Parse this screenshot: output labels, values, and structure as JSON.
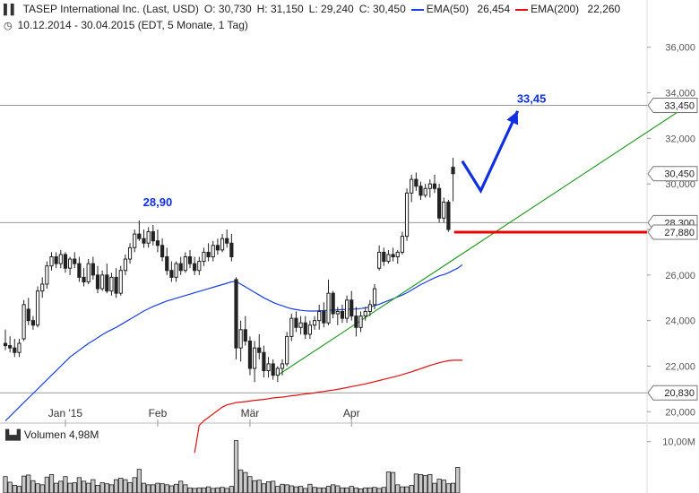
{
  "header": {
    "title": "TASEP International Inc. (Last, USD)",
    "open": "O: 30,730",
    "high": "H: 31,150",
    "low": "L: 29,240",
    "close": "C: 30,450",
    "ema50_label": "EMA(50)",
    "ema50_value": "26,454",
    "ema200_label": "EMA(200)",
    "ema200_value": "22,260",
    "range": "10.12.2014 - 30.04.2015 (EDT, 5 Monate, 1 Tag)",
    "volume_label": "Volumen",
    "volume_value": "4,98M"
  },
  "colors": {
    "candle": "#222222",
    "ema50": "#1a3fe0",
    "ema200": "#e01010",
    "trend": "#2a9a2a",
    "resistance_line": "#999999",
    "arrow": "#1030e0",
    "support_red": "#ee0000",
    "volume_bar": "#c8c8c8"
  },
  "chart_data": {
    "type": "candlestick",
    "title": "TASEP International Inc. (Last, USD)",
    "y_axis_ticks": [
      "36,000",
      "34,000",
      "32,000",
      "30,000",
      "28,000",
      "26,000",
      "24,000",
      "22,000",
      "20,000"
    ],
    "y_tick_values": [
      36,
      34,
      32,
      30,
      28,
      26,
      24,
      22,
      20
    ],
    "ylim": [
      19.5,
      36.5
    ],
    "x_axis_labels": [
      "Jan '15",
      "Feb",
      "Mär",
      "Apr"
    ],
    "x_label_index": [
      13,
      33,
      53,
      75
    ],
    "price_labels": [
      {
        "label": "33,450",
        "value": 33.45
      },
      {
        "label": "30,450",
        "value": 30.45
      },
      {
        "label": "28,300",
        "value": 28.3
      },
      {
        "label": "27,880",
        "value": 27.88
      },
      {
        "label": "20,830",
        "value": 20.83
      }
    ],
    "horizontal_lines": [
      {
        "value": 33.45,
        "color": "#999999"
      },
      {
        "value": 28.3,
        "color": "#999999"
      },
      {
        "value": 20.83,
        "color": "#999999"
      }
    ],
    "annotations": [
      {
        "text": "28,90",
        "value": 28.9,
        "index": 33
      },
      {
        "text": "33,45",
        "value": 33.45,
        "index": 114
      }
    ],
    "candles": [
      [
        23.0,
        23.6,
        22.7,
        22.9
      ],
      [
        22.9,
        23.3,
        22.6,
        22.8
      ],
      [
        22.8,
        23.2,
        22.4,
        22.6
      ],
      [
        22.6,
        23.2,
        22.4,
        23.0
      ],
      [
        23.2,
        24.9,
        23.1,
        24.7
      ],
      [
        24.5,
        25.0,
        23.8,
        24.0
      ],
      [
        24.0,
        24.2,
        23.6,
        23.8
      ],
      [
        23.8,
        25.5,
        23.7,
        25.3
      ],
      [
        25.3,
        25.9,
        25.0,
        25.6
      ],
      [
        25.6,
        26.6,
        25.4,
        26.4
      ],
      [
        26.4,
        27.0,
        26.2,
        26.8
      ],
      [
        26.8,
        27.0,
        26.3,
        26.5
      ],
      [
        26.5,
        27.1,
        26.3,
        26.9
      ],
      [
        26.9,
        27.0,
        26.1,
        26.3
      ],
      [
        26.3,
        26.8,
        26.0,
        26.7
      ],
      [
        26.7,
        27.0,
        26.3,
        26.5
      ],
      [
        26.5,
        26.8,
        25.7,
        25.9
      ],
      [
        25.9,
        26.3,
        25.5,
        25.7
      ],
      [
        25.7,
        26.7,
        25.6,
        26.5
      ],
      [
        26.5,
        26.8,
        25.8,
        26.0
      ],
      [
        26.0,
        26.4,
        25.2,
        25.4
      ],
      [
        25.4,
        26.2,
        25.3,
        26.0
      ],
      [
        26.0,
        26.5,
        25.2,
        25.3
      ],
      [
        25.3,
        26.1,
        25.1,
        25.9
      ],
      [
        25.9,
        26.3,
        25.0,
        25.2
      ],
      [
        25.2,
        26.4,
        25.1,
        26.2
      ],
      [
        26.2,
        26.9,
        26.0,
        26.7
      ],
      [
        26.7,
        27.4,
        26.5,
        27.2
      ],
      [
        27.2,
        28.0,
        27.0,
        27.8
      ],
      [
        27.8,
        28.4,
        27.5,
        27.6
      ],
      [
        27.6,
        28.0,
        27.2,
        27.4
      ],
      [
        27.4,
        28.1,
        27.2,
        27.9
      ],
      [
        27.9,
        28.2,
        27.3,
        27.5
      ],
      [
        27.5,
        28.0,
        27.0,
        27.3
      ],
      [
        27.3,
        27.6,
        26.6,
        26.8
      ],
      [
        26.8,
        27.2,
        26.0,
        26.2
      ],
      [
        26.2,
        26.6,
        25.7,
        25.9
      ],
      [
        25.9,
        26.6,
        25.7,
        26.5
      ],
      [
        26.5,
        26.8,
        26.0,
        26.2
      ],
      [
        26.2,
        27.0,
        26.1,
        26.8
      ],
      [
        26.8,
        27.1,
        26.3,
        26.5
      ],
      [
        26.5,
        26.8,
        26.0,
        26.2
      ],
      [
        26.2,
        26.8,
        26.0,
        26.6
      ],
      [
        26.6,
        27.2,
        26.4,
        27.0
      ],
      [
        27.0,
        27.4,
        26.6,
        26.8
      ],
      [
        26.8,
        27.5,
        26.6,
        27.3
      ],
      [
        27.3,
        27.6,
        26.9,
        27.1
      ],
      [
        27.1,
        27.8,
        27.0,
        27.6
      ],
      [
        27.6,
        28.0,
        27.2,
        27.4
      ],
      [
        27.4,
        27.8,
        26.6,
        26.8
      ],
      [
        25.8,
        25.9,
        22.3,
        22.8
      ],
      [
        22.8,
        24.0,
        22.2,
        23.6
      ],
      [
        23.6,
        24.2,
        22.9,
        23.1
      ],
      [
        23.1,
        23.3,
        21.6,
        21.9
      ],
      [
        21.9,
        23.1,
        21.3,
        22.8
      ],
      [
        22.8,
        23.4,
        22.3,
        22.6
      ],
      [
        22.6,
        22.9,
        21.5,
        21.8
      ],
      [
        21.8,
        22.4,
        21.5,
        22.1
      ],
      [
        22.1,
        22.3,
        21.4,
        21.6
      ],
      [
        21.6,
        22.0,
        21.3,
        21.9
      ],
      [
        21.9,
        22.3,
        21.6,
        22.1
      ],
      [
        22.1,
        23.5,
        22.0,
        23.3
      ],
      [
        23.3,
        24.3,
        23.1,
        24.1
      ],
      [
        24.1,
        24.4,
        23.5,
        23.7
      ],
      [
        23.7,
        24.2,
        23.4,
        23.9
      ],
      [
        23.9,
        24.2,
        23.2,
        23.4
      ],
      [
        23.4,
        24.0,
        23.2,
        23.8
      ],
      [
        23.8,
        24.2,
        23.6,
        24.0
      ],
      [
        24.0,
        24.7,
        23.6,
        24.4
      ],
      [
        24.4,
        24.8,
        23.7,
        23.9
      ],
      [
        23.9,
        25.8,
        23.8,
        25.2
      ],
      [
        25.2,
        25.3,
        24.1,
        24.3
      ],
      [
        24.3,
        24.6,
        23.8,
        24.4
      ],
      [
        24.4,
        24.7,
        23.9,
        24.1
      ],
      [
        24.1,
        25.1,
        23.9,
        24.9
      ],
      [
        24.9,
        25.3,
        24.0,
        24.2
      ],
      [
        24.2,
        24.6,
        23.3,
        23.7
      ],
      [
        23.7,
        24.4,
        23.5,
        24.2
      ],
      [
        24.2,
        24.6,
        24.0,
        24.4
      ],
      [
        24.4,
        24.9,
        24.2,
        24.7
      ],
      [
        24.7,
        25.6,
        24.5,
        25.4
      ],
      [
        26.3,
        27.3,
        26.2,
        27.0
      ],
      [
        27.0,
        27.2,
        26.4,
        26.6
      ],
      [
        26.6,
        27.1,
        26.5,
        26.9
      ],
      [
        26.9,
        27.2,
        26.6,
        26.8
      ],
      [
        26.8,
        27.1,
        26.5,
        27.0
      ],
      [
        27.0,
        27.9,
        26.9,
        27.7
      ],
      [
        27.7,
        29.8,
        27.5,
        29.6
      ],
      [
        29.6,
        30.4,
        29.2,
        30.2
      ],
      [
        30.2,
        30.5,
        29.7,
        29.9
      ],
      [
        29.9,
        30.1,
        29.3,
        29.5
      ],
      [
        29.5,
        30.0,
        29.4,
        29.8
      ],
      [
        29.8,
        30.2,
        29.4,
        30.0
      ],
      [
        30.0,
        30.4,
        29.6,
        29.8
      ],
      [
        29.8,
        30.0,
        28.3,
        28.5
      ],
      [
        28.5,
        29.4,
        28.3,
        29.2
      ],
      [
        29.2,
        29.3,
        27.9,
        28.0
      ],
      [
        30.73,
        31.15,
        29.24,
        30.45
      ]
    ],
    "ema50": [
      19.6,
      19.8,
      20.0,
      20.2,
      20.4,
      20.6,
      20.8,
      21.0,
      21.2,
      21.4,
      21.6,
      21.8,
      22.0,
      22.2,
      22.4,
      22.55,
      22.7,
      22.85,
      23.0,
      23.12,
      23.25,
      23.38,
      23.5,
      23.6,
      23.7,
      23.82,
      23.94,
      24.06,
      24.18,
      24.3,
      24.42,
      24.52,
      24.62,
      24.7,
      24.78,
      24.86,
      24.92,
      24.98,
      25.04,
      25.1,
      25.16,
      25.22,
      25.28,
      25.34,
      25.4,
      25.46,
      25.52,
      25.58,
      25.64,
      25.7,
      25.72,
      25.6,
      25.48,
      25.36,
      25.24,
      25.12,
      25.0,
      24.9,
      24.8,
      24.72,
      24.65,
      24.58,
      24.52,
      24.48,
      24.45,
      24.43,
      24.42,
      24.42,
      24.43,
      24.44,
      24.45,
      24.46,
      24.47,
      24.48,
      24.49,
      24.5,
      24.51,
      24.53,
      24.56,
      24.6,
      24.65,
      24.72,
      24.8,
      24.88,
      24.96,
      25.04,
      25.12,
      25.22,
      25.34,
      25.46,
      25.58,
      25.68,
      25.78,
      25.88,
      25.96,
      26.02,
      26.1,
      26.2,
      26.3,
      26.454
    ],
    "ema200": [
      null,
      null,
      null,
      null,
      null,
      null,
      null,
      null,
      null,
      null,
      null,
      null,
      null,
      null,
      null,
      null,
      null,
      null,
      null,
      null,
      null,
      null,
      null,
      null,
      null,
      null,
      null,
      null,
      null,
      null,
      null,
      null,
      null,
      null,
      null,
      null,
      null,
      null,
      null,
      null,
      null,
      18.2,
      19.4,
      19.6,
      19.75,
      19.9,
      20.05,
      20.2,
      20.3,
      20.35,
      20.4,
      20.42,
      20.44,
      20.47,
      20.5,
      20.52,
      20.54,
      20.57,
      20.6,
      20.62,
      20.64,
      20.67,
      20.7,
      20.72,
      20.75,
      20.78,
      20.8,
      20.83,
      20.86,
      20.89,
      20.92,
      20.95,
      20.98,
      21.02,
      21.06,
      21.1,
      21.14,
      21.18,
      21.22,
      21.27,
      21.32,
      21.37,
      21.42,
      21.47,
      21.52,
      21.57,
      21.63,
      21.69,
      21.75,
      21.82,
      21.89,
      21.96,
      22.03,
      22.09,
      22.15,
      22.2,
      22.24,
      22.26,
      22.26,
      22.26
    ],
    "trendline": [
      {
        "index": 59,
        "value": 21.6
      },
      {
        "index": 146,
        "value": 33.2
      }
    ],
    "support_line": {
      "from_index": 98,
      "to_index": 146,
      "value": 27.88
    },
    "arrow_path": [
      {
        "index": 99,
        "value": 31.0
      },
      {
        "index": 103,
        "value": 29.7
      },
      {
        "index": 111,
        "value": 33.2
      }
    ],
    "volume_axis_label": "10,00M",
    "volume_ylim": [
      0,
      11
    ],
    "volume_m": [
      3.2,
      2.1,
      1.5,
      1.3,
      3.3,
      3.5,
      2.4,
      1.8,
      1.6,
      3.1,
      3.6,
      1.9,
      2.3,
      3.2,
      1.9,
      2.0,
      3.0,
      2.3,
      1.9,
      2.6,
      1.5,
      2.0,
      1.8,
      1.6,
      2.6,
      2.9,
      2.6,
      2.0,
      3.0,
      4.6,
      1.9,
      1.6,
      1.6,
      1.9,
      1.8,
      1.6,
      1.4,
      1.7,
      2.3,
      1.6,
      1.0,
      0.9,
      1.0,
      1.0,
      1.2,
      0.9,
      1.0,
      1.1,
      0.9,
      1.3,
      10.2,
      4.5,
      4.0,
      3.2,
      2.4,
      2.5,
      1.8,
      2.2,
      2.3,
      1.3,
      1.7,
      1.6,
      1.4,
      1.2,
      1.3,
      0.9,
      1.7,
      1.1,
      1.0,
      1.0,
      1.3,
      1.6,
      1.4,
      1.0,
      1.0,
      1.3,
      1.0,
      0.8,
      1.0,
      1.0,
      1.1,
      0.9,
      1.1,
      4.1,
      4.0,
      1.6,
      1.2,
      1.2,
      1.5,
      3.7,
      3.6,
      3.4,
      3.6,
      1.9,
      2.7,
      2.5,
      1.8,
      1.9,
      4.98
    ]
  }
}
